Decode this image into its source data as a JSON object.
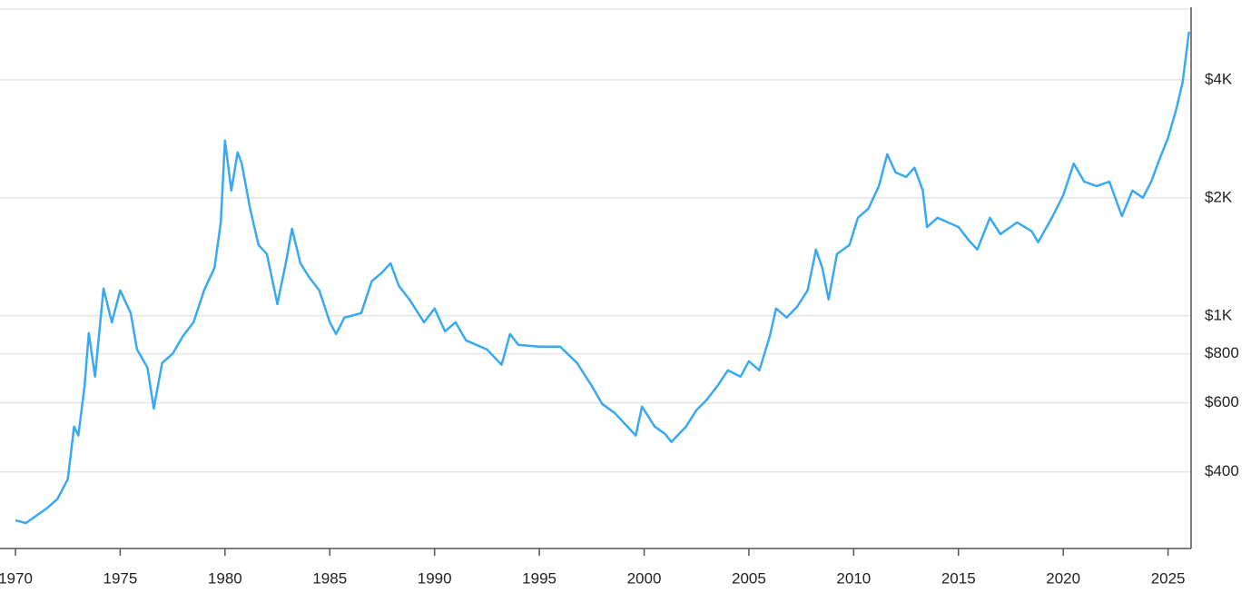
{
  "chart_data": {
    "type": "line",
    "log_y": true,
    "grid": true,
    "color": "#38a9f2",
    "xlim": [
      1970,
      2026.1
    ],
    "xticks": [
      1970,
      1975,
      1980,
      1985,
      1990,
      1995,
      2000,
      2005,
      2010,
      2015,
      2020,
      2025
    ],
    "ylim": [
      255,
      6060
    ],
    "yticks": [
      {
        "value": 400,
        "label": "$400"
      },
      {
        "value": 600,
        "label": "$600"
      },
      {
        "value": 800,
        "label": "$800"
      },
      {
        "value": 1000,
        "label": "$1K"
      },
      {
        "value": 2000,
        "label": "$2K"
      },
      {
        "value": 4000,
        "label": "$4K"
      }
    ],
    "x": [
      1970.0,
      1970.5,
      1971.5,
      1972.0,
      1972.5,
      1972.8,
      1973.0,
      1973.3,
      1973.5,
      1973.8,
      1974.2,
      1974.6,
      1975.0,
      1975.5,
      1975.8,
      1976.3,
      1976.6,
      1977.0,
      1977.5,
      1978.0,
      1978.5,
      1979.0,
      1979.5,
      1979.8,
      1980.0,
      1980.3,
      1980.6,
      1980.8,
      1981.2,
      1981.6,
      1982.0,
      1982.5,
      1982.9,
      1983.2,
      1983.6,
      1984.0,
      1984.5,
      1985.0,
      1985.3,
      1985.7,
      1986.5,
      1987.0,
      1987.5,
      1987.9,
      1988.3,
      1988.8,
      1989.5,
      1990.0,
      1990.5,
      1991.0,
      1991.5,
      1992.0,
      1992.5,
      1993.2,
      1993.6,
      1994.0,
      1995.0,
      1996.0,
      1996.8,
      1997.5,
      1998.0,
      1998.6,
      1999.2,
      1999.6,
      1999.9,
      2000.5,
      2001.0,
      2001.3,
      2002.0,
      2002.5,
      2003.0,
      2003.5,
      2004.0,
      2004.6,
      2005.0,
      2005.5,
      2006.0,
      2006.3,
      2006.8,
      2007.3,
      2007.8,
      2008.2,
      2008.5,
      2008.8,
      2009.2,
      2009.8,
      2010.2,
      2010.7,
      2011.2,
      2011.6,
      2012.0,
      2012.5,
      2012.9,
      2013.3,
      2013.5,
      2014.0,
      2014.5,
      2015.0,
      2015.5,
      2015.9,
      2016.5,
      2017.0,
      2017.8,
      2018.5,
      2018.8,
      2019.5,
      2020.0,
      2020.5,
      2021.0,
      2021.6,
      2022.2,
      2022.8,
      2023.3,
      2023.8,
      2024.2,
      2024.6,
      2025.0,
      2025.4,
      2025.7,
      2026.0
    ],
    "values": [
      301,
      296,
      323,
      341,
      383,
      522,
      495,
      663,
      904,
      700,
      1174,
      963,
      1161,
      1016,
      821,
      738,
      580,
      758,
      800,
      889,
      963,
      1161,
      1327,
      1732,
      2799,
      2088,
      2612,
      2446,
      1876,
      1516,
      1437,
      1072,
      1362,
      1668,
      1362,
      1258,
      1161,
      963,
      899,
      990,
      1016,
      1225,
      1291,
      1362,
      1192,
      1101,
      963,
      1044,
      913,
      963,
      866,
      843,
      821,
      750,
      899,
      843,
      834,
      834,
      758,
      663,
      596,
      565,
      522,
      495,
      587,
      522,
      500,
      477,
      522,
      575,
      612,
      663,
      726,
      700,
      766,
      726,
      889,
      1044,
      990,
      1055,
      1161,
      1476,
      1327,
      1101,
      1437,
      1516,
      1779,
      1876,
      2143,
      2584,
      2322,
      2260,
      2387,
      2088,
      1685,
      1779,
      1731,
      1685,
      1557,
      1476,
      1779,
      1616,
      1731,
      1642,
      1540,
      1796,
      2032,
      2446,
      2200,
      2143,
      2200,
      1796,
      2088,
      2000,
      2200,
      2516,
      2844,
      3373,
      3958,
      5307
    ]
  }
}
